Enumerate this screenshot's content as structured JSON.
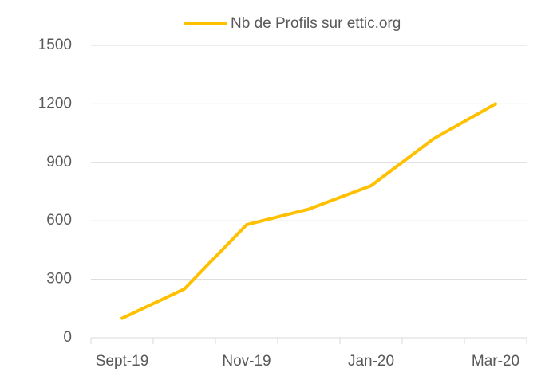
{
  "chart_data": {
    "type": "line",
    "categories": [
      "Sept-19",
      null,
      "Nov-19",
      null,
      "Jan-20",
      null,
      "Mar-20"
    ],
    "series": [
      {
        "name": "Nb de Profils sur ettic.org",
        "color": "#FFC000",
        "values": [
          100,
          250,
          580,
          660,
          780,
          1020,
          1200
        ]
      }
    ],
    "ylim": [
      0,
      1500
    ],
    "yticks": [
      0,
      300,
      600,
      900,
      1200,
      1500
    ],
    "grid": true,
    "legend": "top"
  }
}
